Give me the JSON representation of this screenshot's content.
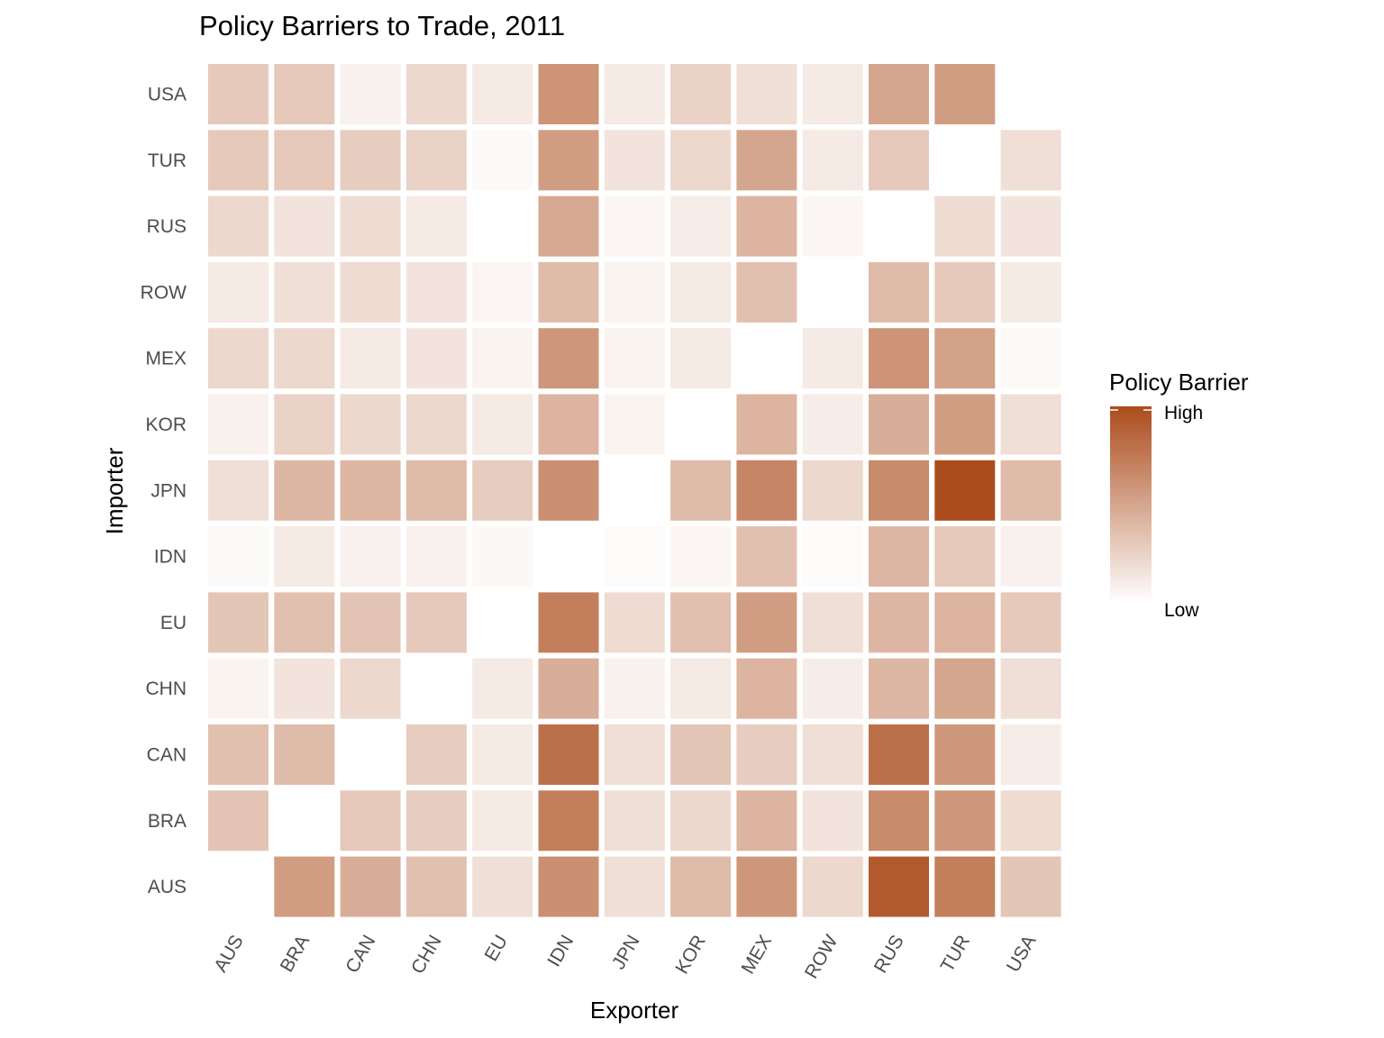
{
  "chart_data": {
    "type": "heatmap",
    "title": "Policy Barriers to Trade, 2011",
    "xlabel": "Exporter",
    "ylabel": "Importer",
    "x_categories": [
      "AUS",
      "BRA",
      "CAN",
      "CHN",
      "EU",
      "IDN",
      "JPN",
      "KOR",
      "MEX",
      "ROW",
      "RUS",
      "TUR",
      "USA"
    ],
    "y_categories": [
      "AUS",
      "BRA",
      "CAN",
      "CHN",
      "EU",
      "IDN",
      "JPN",
      "KOR",
      "MEX",
      "ROW",
      "RUS",
      "TUR",
      "USA"
    ],
    "value_range": [
      0,
      1
    ],
    "values_note_rows": "rows indexed by importer in y_categories order, columns by exporter in x_categories order; null = no cell",
    "values": [
      [
        null,
        0.55,
        0.45,
        0.35,
        0.18,
        0.62,
        0.18,
        0.38,
        0.58,
        0.22,
        0.92,
        0.72,
        0.32
      ],
      [
        0.33,
        null,
        0.3,
        0.28,
        0.12,
        0.72,
        0.18,
        0.22,
        0.42,
        0.15,
        0.65,
        0.58,
        0.2
      ],
      [
        0.35,
        0.38,
        null,
        0.28,
        0.12,
        0.8,
        0.18,
        0.32,
        0.28,
        0.18,
        0.8,
        0.58,
        0.1
      ],
      [
        0.06,
        0.15,
        0.22,
        null,
        0.12,
        0.45,
        0.08,
        0.12,
        0.42,
        0.1,
        0.4,
        0.5,
        0.18
      ],
      [
        0.32,
        0.35,
        0.33,
        0.3,
        null,
        0.72,
        0.2,
        0.35,
        0.55,
        0.18,
        0.4,
        0.42,
        0.3
      ],
      [
        0.03,
        0.12,
        0.08,
        0.08,
        0.04,
        null,
        0.02,
        0.05,
        0.35,
        0.02,
        0.4,
        0.3,
        0.08
      ],
      [
        0.18,
        0.4,
        0.4,
        0.38,
        0.28,
        0.62,
        null,
        0.38,
        0.68,
        0.22,
        0.65,
        1.0,
        0.38
      ],
      [
        0.08,
        0.25,
        0.22,
        0.22,
        0.12,
        0.42,
        0.06,
        null,
        0.42,
        0.1,
        0.45,
        0.55,
        0.18
      ],
      [
        0.22,
        0.22,
        0.12,
        0.15,
        0.06,
        0.58,
        0.06,
        0.12,
        null,
        0.12,
        0.6,
        0.52,
        0.03
      ],
      [
        0.12,
        0.18,
        0.2,
        0.15,
        0.05,
        0.38,
        0.06,
        0.12,
        0.35,
        null,
        0.38,
        0.3,
        0.12
      ],
      [
        0.22,
        0.15,
        0.2,
        0.12,
        null,
        0.48,
        0.05,
        0.1,
        0.42,
        0.05,
        null,
        0.2,
        0.15
      ],
      [
        0.3,
        0.3,
        0.28,
        0.25,
        0.03,
        0.55,
        0.15,
        0.22,
        0.5,
        0.12,
        0.3,
        null,
        0.18
      ],
      [
        0.3,
        0.3,
        0.08,
        0.22,
        0.12,
        0.6,
        0.12,
        0.25,
        0.18,
        0.12,
        0.5,
        0.55,
        null
      ]
    ],
    "colorscale": {
      "low": "#ffffff",
      "high": "#ab4c1c"
    },
    "legend": {
      "title": "Policy Barrier",
      "high_label": "High",
      "low_label": "Low",
      "placement": "right"
    },
    "grid": false
  }
}
